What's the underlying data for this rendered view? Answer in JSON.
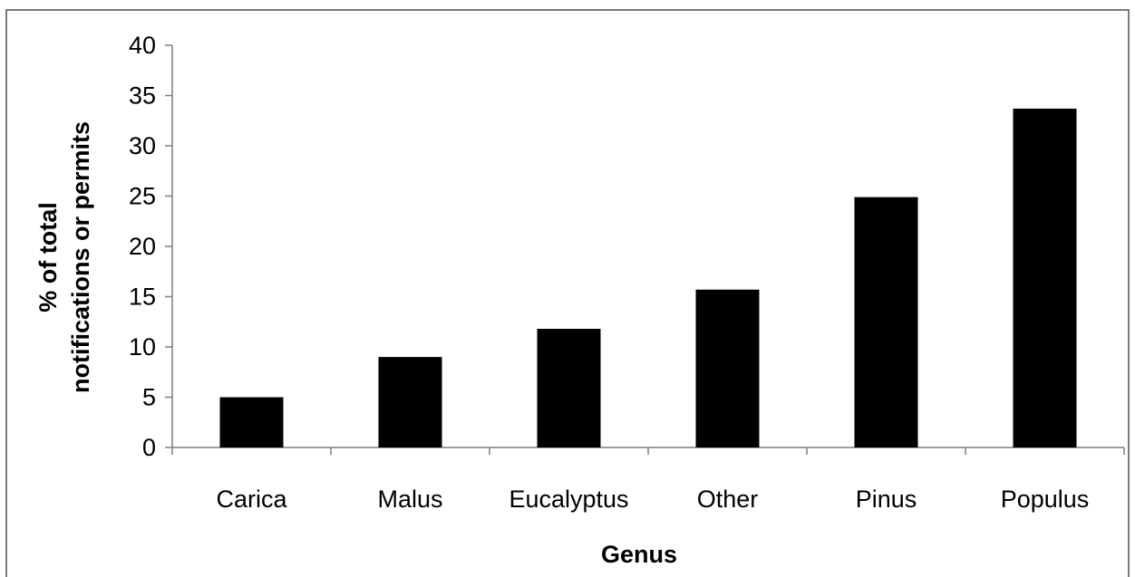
{
  "chart_data": {
    "type": "bar",
    "categories": [
      "Carica",
      "Malus",
      "Eucalyptus",
      "Other",
      "Pinus",
      "Populus"
    ],
    "values": [
      5,
      9,
      11.8,
      15.7,
      24.9,
      33.7
    ],
    "xlabel": "Genus",
    "ylabel": [
      "% of total",
      "notifications or permits"
    ],
    "ylim": [
      0,
      40
    ],
    "yticks": [
      0,
      5,
      10,
      15,
      20,
      25,
      30,
      35,
      40
    ],
    "grid": false,
    "legend": "none",
    "bar_color": "#000000",
    "axis_color": "#7f7f7f"
  }
}
